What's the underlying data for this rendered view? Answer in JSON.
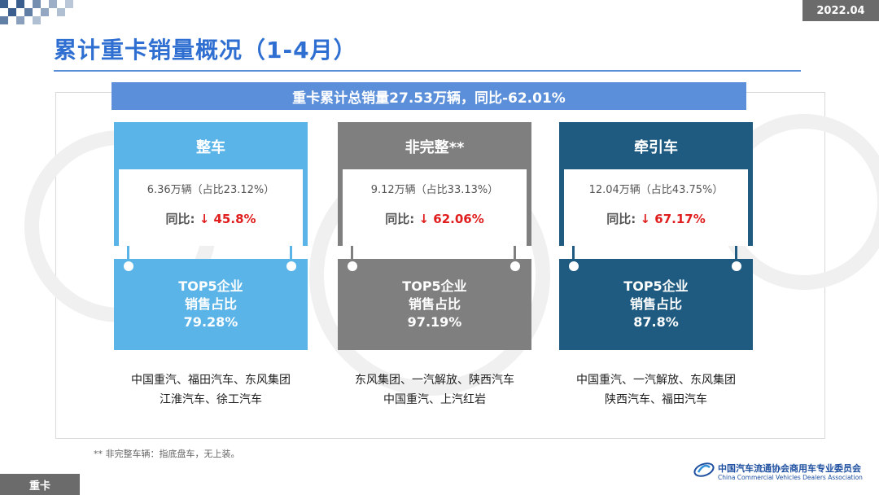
{
  "date_tag": "2022.04",
  "page_title": "累计重卡销量概况（1-4月）",
  "banner": "重卡累计总销量27.53万辆，同比-62.01%",
  "colors": {
    "title_blue": "#2f6fd1",
    "banner_blue": "#5b8fd9",
    "card1": "#5bb4e8",
    "card2": "#7f7f7f",
    "card3": "#1f5b80",
    "down_red": "#e01e1e"
  },
  "cards": [
    {
      "title": "整车",
      "share": "6.36万辆（占比23.12%）",
      "yoy_label": "同比:",
      "yoy_arrow": "↓",
      "yoy_value": "45.8%",
      "top5_line1": "TOP5企业",
      "top5_line2": "销售占比",
      "top5_value": "79.28%",
      "companies_line1": "中国重汽、福田汽车、东风集团",
      "companies_line2": "江淮汽车、徐工汽车"
    },
    {
      "title": "非完整**",
      "share": "9.12万辆（占比33.13%）",
      "yoy_label": "同比:",
      "yoy_arrow": "↓",
      "yoy_value": "62.06%",
      "top5_line1": "TOP5企业",
      "top5_line2": "销售占比",
      "top5_value": "97.19%",
      "companies_line1": "东风集团、一汽解放、陕西汽车",
      "companies_line2": "中国重汽、上汽红岩"
    },
    {
      "title": "牵引车",
      "share": "12.04万辆（占比43.75%）",
      "yoy_label": "同比:",
      "yoy_arrow": "↓",
      "yoy_value": "67.17%",
      "top5_line1": "TOP5企业",
      "top5_line2": "销售占比",
      "top5_value": "87.8%",
      "companies_line1": "中国重汽、一汽解放、东风集团",
      "companies_line2": "陕西汽车、福田汽车"
    }
  ],
  "footnote": "** 非完整车辆：指底盘车，无上装。",
  "bottom_tag": "重卡",
  "org_name_cn": "中国汽车流通协会商用车专业委员会",
  "org_name_en": "China Commercial Vehicles Dealers Association",
  "logo_icon": "cvda-logo-icon"
}
